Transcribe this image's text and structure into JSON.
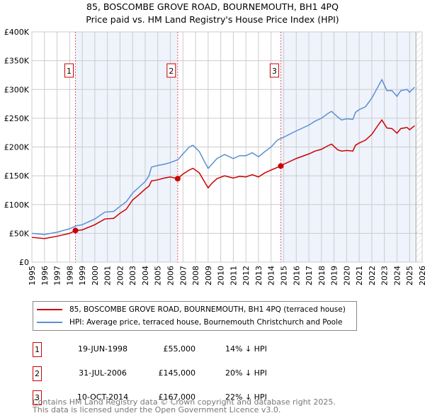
{
  "title": "85, BOSCOMBE GROVE ROAD, BOURNEMOUTH, BH1 4PQ",
  "subtitle": "Price paid vs. HM Land Registry's House Price Index (HPI)",
  "chart_data": {
    "type": "line",
    "ylim": [
      0,
      400000
    ],
    "xlim": [
      1995,
      2026
    ],
    "yticks": [
      0,
      50000,
      100000,
      150000,
      200000,
      250000,
      300000,
      350000,
      400000
    ],
    "ytick_labels": [
      "£0",
      "£50K",
      "£100K",
      "£150K",
      "£200K",
      "£250K",
      "£300K",
      "£350K",
      "£400K"
    ],
    "xticks": [
      "1995",
      "1996",
      "1997",
      "1998",
      "1999",
      "2000",
      "2001",
      "2002",
      "2003",
      "2004",
      "2005",
      "2006",
      "2007",
      "2008",
      "2009",
      "2010",
      "2011",
      "2012",
      "2013",
      "2014",
      "2015",
      "2016",
      "2017",
      "2018",
      "2019",
      "2020",
      "2021",
      "2022",
      "2023",
      "2024",
      "2025",
      "2026"
    ],
    "grid": true,
    "shaded_periods": [
      [
        1998.46,
        2006.58
      ],
      [
        2014.77,
        2025.4
      ]
    ],
    "hatched_from": 2025.5,
    "series": [
      {
        "name": "85, BOSCOMBE GROVE ROAD, BOURNEMOUTH, BH1 4PQ (terraced house)",
        "color": "#cc0000",
        "x": [
          1995,
          1996,
          1997,
          1998,
          1998.46,
          1999,
          2000,
          2000.8,
          2001.5,
          2002,
          2002.5,
          2003,
          2003.5,
          2004,
          2004.3,
          2004.5,
          2005,
          2005.5,
          2006,
          2006.58,
          2007,
          2007.5,
          2007.8,
          2008.3,
          2008.7,
          2009,
          2009.3,
          2009.7,
          2010.3,
          2011,
          2011.5,
          2012,
          2012.5,
          2013,
          2013.5,
          2014,
          2014.77,
          2015,
          2016,
          2017,
          2017.5,
          2018,
          2018.5,
          2018.8,
          2019.3,
          2019.6,
          2020,
          2020.5,
          2020.7,
          2021,
          2021.5,
          2022,
          2022.5,
          2022.8,
          2023.2,
          2023.6,
          2024,
          2024.3,
          2024.8,
          2025,
          2025.4
        ],
        "y": [
          43000,
          41000,
          45000,
          50000,
          55000,
          56000,
          65000,
          75000,
          76000,
          85000,
          92000,
          108000,
          117000,
          127000,
          132000,
          141000,
          143000,
          146000,
          148000,
          145000,
          153000,
          160000,
          163000,
          155000,
          140000,
          129000,
          137000,
          145000,
          150000,
          146000,
          149000,
          148000,
          152000,
          148000,
          155000,
          160000,
          167000,
          170000,
          180000,
          188000,
          193000,
          196000,
          202000,
          205000,
          195000,
          193000,
          194000,
          193000,
          203000,
          207000,
          212000,
          222000,
          238000,
          247000,
          233000,
          232000,
          224000,
          232000,
          234000,
          230000,
          237000
        ]
      },
      {
        "name": "HPI: Average price, terraced house, Bournemouth Christchurch and Poole",
        "color": "#5b8fd4",
        "x": [
          1995,
          1996,
          1997,
          1998,
          1998.5,
          1999,
          2000,
          2000.8,
          2001.5,
          2002,
          2002.5,
          2003,
          2003.5,
          2004,
          2004.3,
          2004.5,
          2005,
          2005.5,
          2006,
          2006.6,
          2007,
          2007.5,
          2007.8,
          2008.3,
          2008.7,
          2009,
          2009.3,
          2009.7,
          2010.3,
          2011,
          2011.5,
          2012,
          2012.5,
          2013,
          2013.5,
          2014,
          2014.5,
          2015,
          2016,
          2017,
          2017.5,
          2018,
          2018.5,
          2018.8,
          2019.3,
          2019.6,
          2020,
          2020.5,
          2020.7,
          2021,
          2021.5,
          2022,
          2022.5,
          2022.8,
          2023.2,
          2023.6,
          2024,
          2024.3,
          2024.8,
          2025,
          2025.4
        ],
        "y": [
          50000,
          48000,
          52000,
          58000,
          63000,
          65000,
          75000,
          87000,
          88000,
          97000,
          105000,
          120000,
          130000,
          140000,
          150000,
          165000,
          168000,
          170000,
          173000,
          178000,
          188000,
          200000,
          203000,
          192000,
          175000,
          163000,
          170000,
          180000,
          187000,
          180000,
          185000,
          185000,
          190000,
          183000,
          192000,
          200000,
          212000,
          217000,
          228000,
          238000,
          245000,
          250000,
          258000,
          262000,
          252000,
          247000,
          249000,
          248000,
          260000,
          265000,
          270000,
          285000,
          305000,
          317000,
          298000,
          298000,
          288000,
          298000,
          300000,
          295000,
          304000
        ]
      }
    ],
    "sales": [
      {
        "label": "1",
        "x": 1998.46,
        "y": 55000,
        "date": "19-JUN-1998",
        "price": "£55,000",
        "hpi": "14% ↓ HPI"
      },
      {
        "label": "2",
        "x": 2006.58,
        "y": 145000,
        "date": "31-JUL-2006",
        "price": "£145,000",
        "hpi": "20% ↓ HPI"
      },
      {
        "label": "3",
        "x": 2014.77,
        "y": 167000,
        "date": "10-OCT-2014",
        "price": "£167,000",
        "hpi": "22% ↓ HPI"
      }
    ]
  },
  "legend": {
    "red": "85, BOSCOMBE GROVE ROAD, BOURNEMOUTH, BH1 4PQ (terraced house)",
    "blue": "HPI: Average price, terraced house, Bournemouth Christchurch and Poole"
  },
  "footer": {
    "line1": "Contains HM Land Registry data © Crown copyright and database right 2025.",
    "line2": "This data is licensed under the Open Government Licence v3.0."
  }
}
